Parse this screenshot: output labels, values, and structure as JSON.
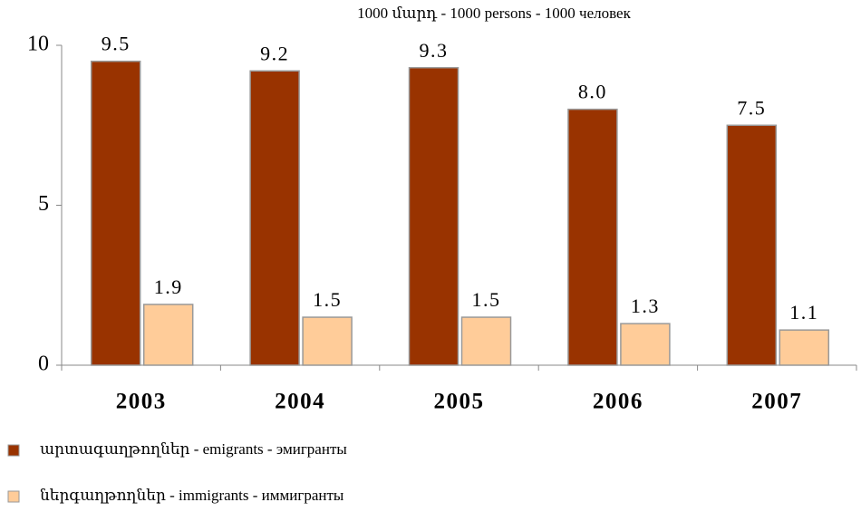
{
  "chart_data": {
    "type": "bar",
    "title": "1000 մարդ - 1000  persons - 1000  человек",
    "categories": [
      "2003",
      "2004",
      "2005",
      "2006",
      "2007"
    ],
    "series": [
      {
        "name": "արտագաղթողներ - emigrants - эмигранты",
        "color": "#993300",
        "values": [
          9.5,
          9.2,
          9.3,
          8.0,
          7.5
        ],
        "value_labels": [
          "9.5",
          "9.2",
          "9.3",
          "8.0",
          "7.5"
        ]
      },
      {
        "name": "ներգաղթողներ - immigrants - иммигранты",
        "color": "#FFCC99",
        "values": [
          1.9,
          1.5,
          1.5,
          1.3,
          1.1
        ],
        "value_labels": [
          "1.9",
          "1.5",
          "1.5",
          "1.3",
          "1.1"
        ]
      }
    ],
    "ylim": [
      0,
      10
    ],
    "yticks": [
      0,
      5,
      10
    ],
    "legend": "bottom"
  }
}
